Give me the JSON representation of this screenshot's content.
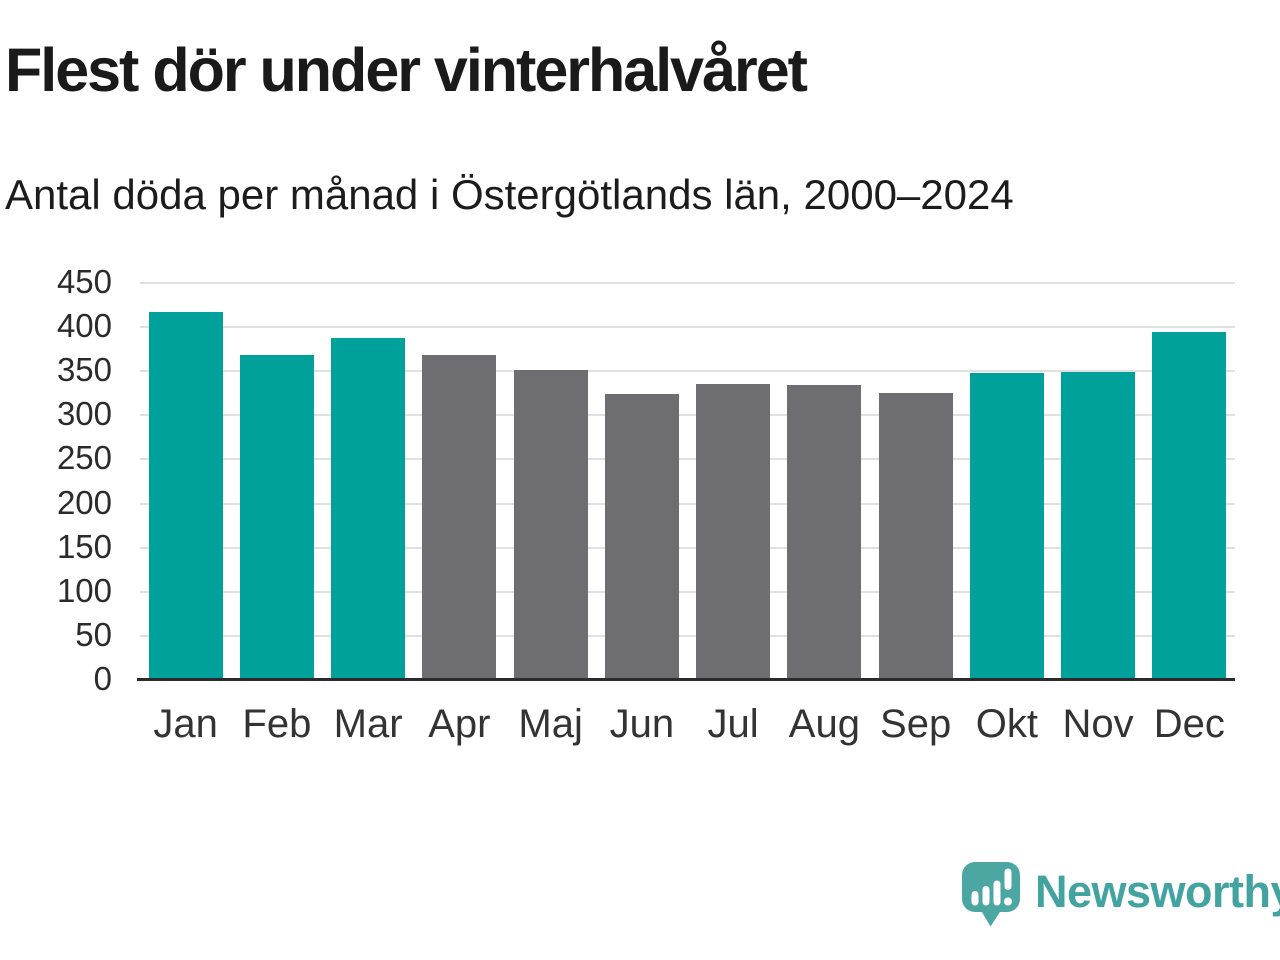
{
  "page": {
    "background": "#FFFFFF"
  },
  "header": {
    "title": "Flest dör under vinterhalvåret",
    "subtitle": "Antal döda per månad i Östergötlands län, 2000–2024"
  },
  "chart_data": {
    "type": "bar",
    "title": "Flest dör under vinterhalvåret",
    "subtitle": "Antal döda per månad i Östergötlands län, 2000–2024",
    "categories": [
      "Jan",
      "Feb",
      "Mar",
      "Apr",
      "Maj",
      "Jun",
      "Jul",
      "Aug",
      "Sep",
      "Okt",
      "Nov",
      "Dec"
    ],
    "values": [
      417,
      368,
      388,
      369,
      351,
      324,
      336,
      335,
      325,
      348,
      349,
      395
    ],
    "bar_color_keys": [
      "winter",
      "winter",
      "winter",
      "summer",
      "summer",
      "summer",
      "summer",
      "summer",
      "summer",
      "winter",
      "winter",
      "winter"
    ],
    "colors": {
      "winter": "#00A19B",
      "summer": "#6D6D72"
    },
    "xlabel": "",
    "ylabel": "",
    "ylim": [
      0,
      450
    ],
    "yticks": [
      0,
      50,
      100,
      150,
      200,
      250,
      300,
      350,
      400,
      450
    ],
    "grid": "horizontal",
    "legend": "none"
  },
  "footer": {
    "brand": "Newsworthy",
    "logo_icon": "speech-bubble-bar-chart-icon",
    "colors": {
      "logo": "#4CA7A3",
      "text": "#43A3A0"
    }
  }
}
